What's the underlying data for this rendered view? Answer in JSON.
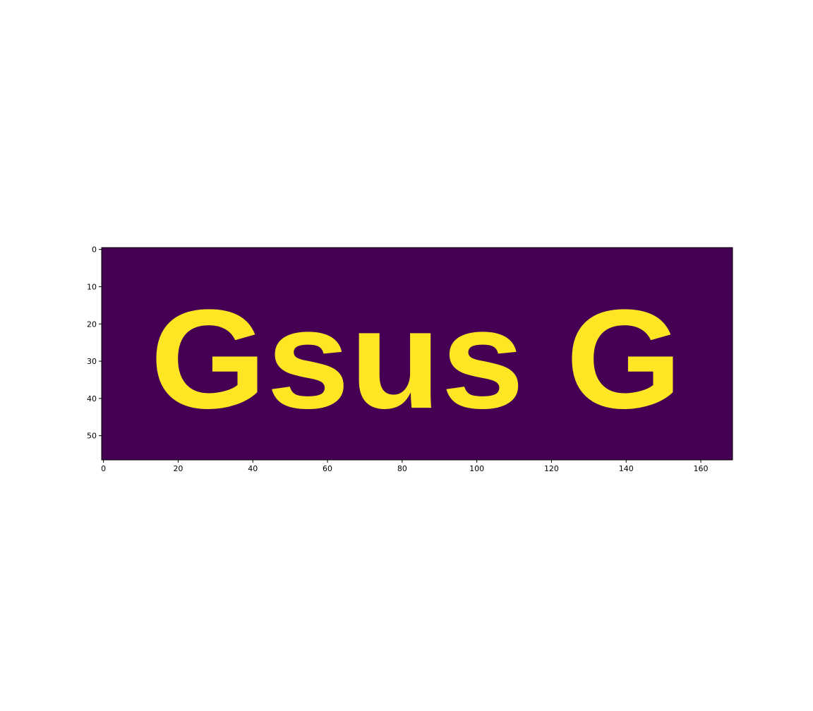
{
  "chart_data": {
    "type": "heatmap",
    "title": "",
    "xlabel": "",
    "ylabel": "",
    "image_size": {
      "rows": 57,
      "cols": 169
    },
    "rendered_text": "Gsus G",
    "colormap": {
      "low": "#440154",
      "high": "#fde725"
    },
    "value_range": [
      0,
      1
    ],
    "xlim": [
      -0.5,
      168.5
    ],
    "ylim": [
      56.5,
      -0.5
    ],
    "x_ticks": [
      0,
      20,
      40,
      60,
      80,
      100,
      120,
      140,
      160
    ],
    "y_ticks": [
      0,
      10,
      20,
      30,
      40,
      50
    ],
    "x_tick_labels": [
      "0",
      "20",
      "40",
      "60",
      "80",
      "100",
      "120",
      "140",
      "160"
    ],
    "y_tick_labels": [
      "0",
      "10",
      "20",
      "30",
      "40",
      "50"
    ],
    "grid": false
  }
}
